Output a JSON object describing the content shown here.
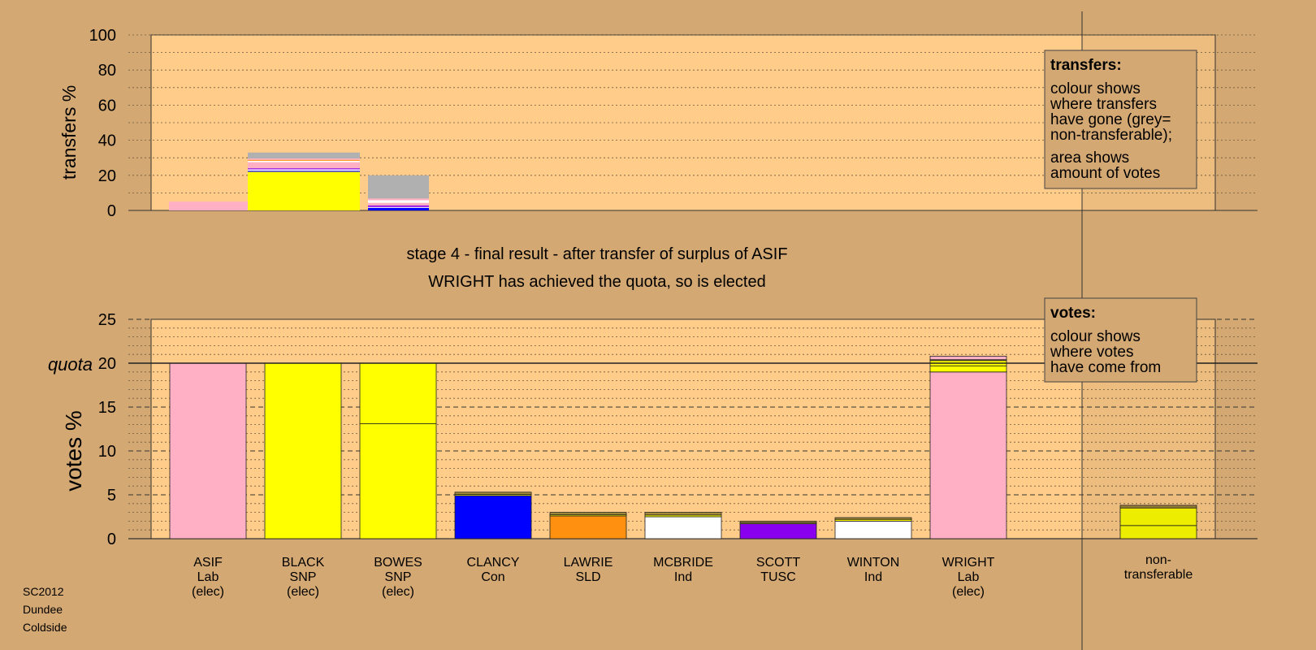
{
  "chart_data": {
    "type": "bar",
    "stage_lines": [
      "stage 4 - final result - after transfer of surplus of ASIF",
      "WRIGHT has achieved the quota, so is elected"
    ],
    "footer": [
      "SC2012",
      "Dundee",
      "Coldside"
    ],
    "colors": {
      "page_background": "#D4A872",
      "plot_background": "#FFCC8A",
      "Lab": "#FFB0C4",
      "SNP": "#FFFF00",
      "Con": "#0000FF",
      "SLD": "#FF9010",
      "TUSC": "#8800EE",
      "Ind": "#FFFFFF",
      "non_transferable": "#B0B0B0",
      "mixed": "#A58A3C"
    },
    "transfers": {
      "ylabel": "transfers %",
      "ylim": [
        0,
        100
      ],
      "yticks": [
        "0",
        "20",
        "40",
        "60",
        "80",
        "100"
      ],
      "legend": {
        "title": "transfers:",
        "lines1": [
          "colour shows",
          "where transfers",
          "have gone (grey=",
          "non-transferable);"
        ],
        "lines2": [
          "area shows",
          "amount of votes"
        ]
      },
      "bars": [
        {
          "source": "WRIGHT",
          "value": 5,
          "segments": [
            {
              "party": "Lab",
              "value": 5
            }
          ]
        },
        {
          "source": "BLACK",
          "value": 33,
          "segments": [
            {
              "party": "SNP",
              "value": 22
            },
            {
              "party": "Con",
              "value": 0.6
            },
            {
              "party": "Ind",
              "value": 0.8
            },
            {
              "party": "TUSC",
              "value": 0.6
            },
            {
              "party": "Lab",
              "value": 3.5
            },
            {
              "party": "Ind",
              "value": 0.8
            },
            {
              "party": "SLD",
              "value": 0.5
            },
            {
              "party": "Lab",
              "value": 0.8
            },
            {
              "party": "non_transferable",
              "value": 3.4
            }
          ]
        },
        {
          "source": "BOWES",
          "value": 20,
          "segments": [
            {
              "party": "Con",
              "value": 1.5
            },
            {
              "party": "Ind",
              "value": 0.5
            },
            {
              "party": "TUSC",
              "value": 0.8
            },
            {
              "party": "Lab",
              "value": 1.5
            },
            {
              "party": "Ind",
              "value": 1.5
            },
            {
              "party": "Lab",
              "value": 1.0
            },
            {
              "party": "non_transferable",
              "value": 13.2
            }
          ]
        }
      ]
    },
    "votes": {
      "ylabel": "votes %",
      "ylim": [
        0,
        25
      ],
      "yticks": [
        "0",
        "5",
        "10",
        "15",
        "20",
        "25"
      ],
      "quota": 20,
      "quota_label": "quota",
      "legend": {
        "title": "votes:",
        "lines": [
          "colour shows",
          "where votes",
          "have come from"
        ]
      },
      "candidates": [
        {
          "name": "ASIF",
          "party": "Lab",
          "status": "(elec)",
          "total": 20,
          "segments": [
            {
              "party": "Lab",
              "value": 20
            }
          ]
        },
        {
          "name": "BLACK",
          "party": "SNP",
          "status": "(elec)",
          "total": 20,
          "segments": [
            {
              "party": "SNP",
              "value": 20
            }
          ]
        },
        {
          "name": "BOWES",
          "party": "SNP",
          "status": "(elec)",
          "total": 20,
          "segments": [
            {
              "party": "SNP",
              "value": 13.1
            },
            {
              "party": "SNP",
              "value": 6.9
            }
          ]
        },
        {
          "name": "CLANCY",
          "party": "Con",
          "status": "",
          "total": 5.3,
          "segments": [
            {
              "party": "Con",
              "value": 4.9
            },
            {
              "party": "SNP",
              "value": 0.15
            },
            {
              "party": "mixed",
              "value": 0.25
            }
          ]
        },
        {
          "name": "LAWRIE",
          "party": "SLD",
          "status": "",
          "total": 3.0,
          "segments": [
            {
              "party": "SLD",
              "value": 2.6
            },
            {
              "party": "SNP",
              "value": 0.15
            },
            {
              "party": "mixed",
              "value": 0.25
            }
          ]
        },
        {
          "name": "MCBRIDE",
          "party": "Ind",
          "status": "",
          "total": 3.0,
          "segments": [
            {
              "party": "Ind",
              "value": 2.5
            },
            {
              "party": "SNP",
              "value": 0.2
            },
            {
              "party": "mixed",
              "value": 0.3
            }
          ]
        },
        {
          "name": "SCOTT",
          "party": "TUSC",
          "status": "",
          "total": 2.0,
          "segments": [
            {
              "party": "TUSC",
              "value": 1.7
            },
            {
              "party": "SNP",
              "value": 0.1
            },
            {
              "party": "mixed",
              "value": 0.2
            }
          ]
        },
        {
          "name": "WINTON",
          "party": "Ind",
          "status": "",
          "total": 2.4,
          "segments": [
            {
              "party": "Ind",
              "value": 2.0
            },
            {
              "party": "SNP",
              "value": 0.2
            },
            {
              "party": "mixed",
              "value": 0.2
            }
          ]
        },
        {
          "name": "WRIGHT",
          "party": "Lab",
          "status": "(elec)",
          "total": 20.8,
          "segments": [
            {
              "party": "Lab",
              "value": 19.0
            },
            {
              "party": "SNP",
              "value": 0.7
            },
            {
              "party": "SNP",
              "value": 0.6
            },
            {
              "party": "mixed",
              "value": 0.1
            },
            {
              "party": "Lab",
              "value": 0.4
            }
          ]
        }
      ],
      "non_transferable": {
        "label": [
          "non-",
          "transferable"
        ],
        "total": 3.8,
        "segments": [
          {
            "party": "SNP",
            "value": 1.5
          },
          {
            "party": "SNP",
            "value": 2.0
          },
          {
            "party": "mixed",
            "value": 0.3
          }
        ]
      }
    }
  }
}
